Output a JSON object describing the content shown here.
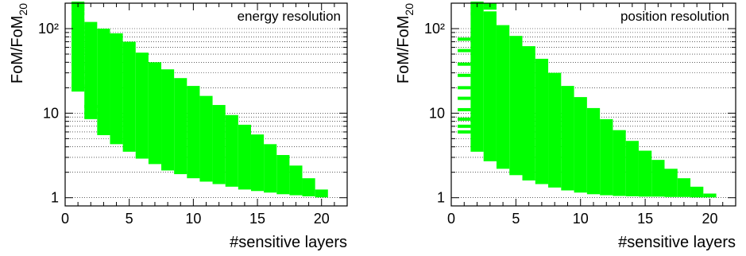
{
  "chart_data": [
    {
      "type": "bar",
      "title": "energy resolution",
      "xlabel": "#sensitive layers",
      "ylabel": "FoM/FoM",
      "ylabel_subscript": "20",
      "xlim": [
        0,
        22
      ],
      "ylim": [
        0.8,
        200
      ],
      "yscale": "log",
      "grid": "horizontal dotted",
      "color": "#00ff00",
      "x_ticks": [
        "0",
        "5",
        "10",
        "15",
        "20"
      ],
      "y_ticks": [
        "1",
        "10",
        "10²"
      ],
      "bands": [
        {
          "x": 1,
          "min": 18,
          "max": 200
        },
        {
          "x": 2,
          "min": 8.5,
          "max": 120
        },
        {
          "x": 3,
          "min": 5.5,
          "max": 100
        },
        {
          "x": 4,
          "min": 4.3,
          "max": 88
        },
        {
          "x": 5,
          "min": 3.5,
          "max": 70
        },
        {
          "x": 6,
          "min": 2.9,
          "max": 52
        },
        {
          "x": 7,
          "min": 2.5,
          "max": 40
        },
        {
          "x": 8,
          "min": 2.1,
          "max": 33
        },
        {
          "x": 9,
          "min": 1.9,
          "max": 26
        },
        {
          "x": 10,
          "min": 1.7,
          "max": 21
        },
        {
          "x": 11,
          "min": 1.55,
          "max": 16
        },
        {
          "x": 12,
          "min": 1.45,
          "max": 12.5
        },
        {
          "x": 13,
          "min": 1.35,
          "max": 9.5
        },
        {
          "x": 14,
          "min": 1.25,
          "max": 7.3
        },
        {
          "x": 15,
          "min": 1.2,
          "max": 5.6
        },
        {
          "x": 16,
          "min": 1.15,
          "max": 4.3
        },
        {
          "x": 17,
          "min": 1.1,
          "max": 3.2
        },
        {
          "x": 18,
          "min": 1.07,
          "max": 2.4
        },
        {
          "x": 19,
          "min": 1.04,
          "max": 1.7
        },
        {
          "x": 20,
          "min": 1.01,
          "max": 1.25
        }
      ],
      "marks": [
        {
          "x": 1,
          "y": 200
        },
        {
          "x": 1,
          "y": 185
        },
        {
          "x": 1,
          "y": 168
        },
        {
          "x": 1,
          "y": 150
        },
        {
          "x": 1,
          "y": 125
        },
        {
          "x": 1,
          "y": 105
        },
        {
          "x": 1,
          "y": 90
        },
        {
          "x": 1,
          "y": 78
        },
        {
          "x": 1,
          "y": 65
        },
        {
          "x": 1,
          "y": 55
        },
        {
          "x": 1,
          "y": 45
        },
        {
          "x": 1,
          "y": 38
        },
        {
          "x": 1,
          "y": 31
        },
        {
          "x": 1,
          "y": 26
        },
        {
          "x": 1,
          "y": 21
        },
        {
          "x": 2,
          "y": 12
        },
        {
          "x": 2,
          "y": 10
        }
      ]
    },
    {
      "type": "bar",
      "title": "position resolution",
      "xlabel": "#sensitive layers",
      "ylabel": "FoM/FoM",
      "ylabel_subscript": "20",
      "xlim": [
        0,
        22
      ],
      "ylim": [
        0.8,
        200
      ],
      "yscale": "log",
      "grid": "horizontal dotted",
      "color": "#00ff00",
      "x_ticks": [
        "0",
        "5",
        "10",
        "15",
        "20"
      ],
      "y_ticks": [
        "1",
        "10",
        "10²"
      ],
      "bands": [
        {
          "x": 2,
          "min": 3.5,
          "max": 200
        },
        {
          "x": 3,
          "min": 2.7,
          "max": 160
        },
        {
          "x": 4,
          "min": 2.2,
          "max": 110
        },
        {
          "x": 5,
          "min": 1.85,
          "max": 82
        },
        {
          "x": 6,
          "min": 1.6,
          "max": 62
        },
        {
          "x": 7,
          "min": 1.45,
          "max": 44
        },
        {
          "x": 8,
          "min": 1.32,
          "max": 30
        },
        {
          "x": 9,
          "min": 1.22,
          "max": 21
        },
        {
          "x": 10,
          "min": 1.15,
          "max": 15.5
        },
        {
          "x": 11,
          "min": 1.1,
          "max": 11.5
        },
        {
          "x": 12,
          "min": 1.07,
          "max": 8.5
        },
        {
          "x": 13,
          "min": 1.05,
          "max": 6.3
        },
        {
          "x": 14,
          "min": 1.04,
          "max": 4.7
        },
        {
          "x": 15,
          "min": 1.03,
          "max": 3.6
        },
        {
          "x": 16,
          "min": 1.03,
          "max": 2.8
        },
        {
          "x": 17,
          "min": 1.02,
          "max": 2.2
        },
        {
          "x": 18,
          "min": 1.02,
          "max": 1.7
        },
        {
          "x": 19,
          "min": 1.01,
          "max": 1.35
        },
        {
          "x": 20,
          "min": 1.01,
          "max": 1.12
        }
      ],
      "marks": [
        {
          "x": 1,
          "y": 75
        },
        {
          "x": 1,
          "y": 55
        },
        {
          "x": 1,
          "y": 38
        },
        {
          "x": 1,
          "y": 28
        },
        {
          "x": 1,
          "y": 20
        },
        {
          "x": 1,
          "y": 15
        },
        {
          "x": 1,
          "y": 11
        },
        {
          "x": 1,
          "y": 8.5
        },
        {
          "x": 1,
          "y": 7
        },
        {
          "x": 1,
          "y": 6
        },
        {
          "x": 2,
          "y": 200
        },
        {
          "x": 2,
          "y": 180
        },
        {
          "x": 2,
          "y": 150
        },
        {
          "x": 3,
          "y": 190
        },
        {
          "x": 3,
          "y": 175
        }
      ]
    }
  ]
}
